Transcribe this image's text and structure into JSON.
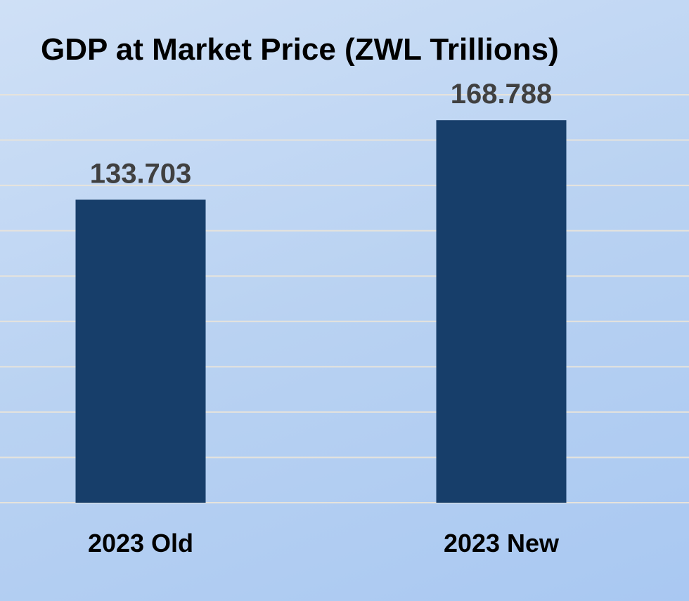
{
  "chart_data": {
    "type": "bar",
    "title": "GDP at Market Price (ZWL Trillions)",
    "categories": [
      "2023 Old",
      "2023 New"
    ],
    "values": [
      133.703,
      168.788
    ],
    "data_labels": [
      "133.703",
      "168.788"
    ],
    "xlabel": "",
    "ylabel": "",
    "ylim": [
      0,
      180
    ],
    "grid_step": 20,
    "grid": true,
    "y_tick_labels_shown": false,
    "legend": "none",
    "colors": {
      "bar": "#173e6a",
      "grid": "#e6e3dc",
      "data_label": "#404040",
      "category_label": "#000000"
    }
  }
}
